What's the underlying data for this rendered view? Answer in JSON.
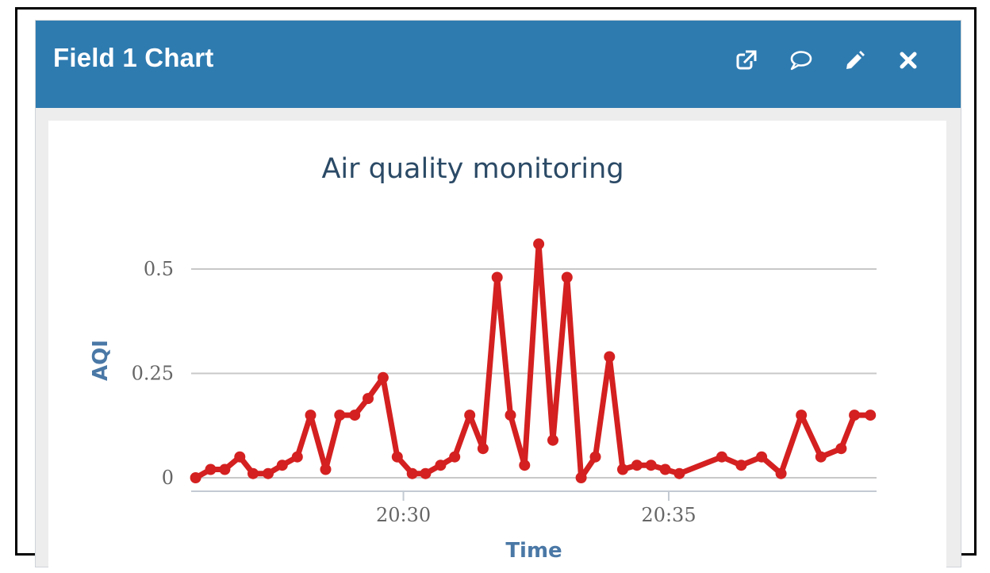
{
  "widget": {
    "title": "Field 1 Chart",
    "icons": [
      "external-link-icon",
      "comment-icon",
      "pencil-icon",
      "close-icon"
    ]
  },
  "colors": {
    "header_bg": "#2e7bb0",
    "series": "#d42020",
    "grid": "#c8c8c8",
    "title": "#2b4a66",
    "axis_title": "#4a78a6"
  },
  "chart_data": {
    "type": "line",
    "title": "Air quality monitoring",
    "xlabel": "Time",
    "ylabel": "AQI",
    "xlim": [
      "20:26:00",
      "20:38:55"
    ],
    "ylim": [
      0,
      0.5
    ],
    "y_ticks": [
      0,
      0.25,
      0.5
    ],
    "y_tick_labels": [
      "0",
      "0.25",
      "0.5"
    ],
    "x_ticks": [
      "20:30",
      "20:35"
    ],
    "grid": true,
    "legend": "none",
    "series": [
      {
        "x": [
          "20:26:05",
          "20:26:22",
          "20:26:38",
          "20:26:55",
          "20:27:10",
          "20:27:27",
          "20:27:43",
          "20:28:00",
          "20:28:15",
          "20:28:32",
          "20:28:48",
          "20:29:05",
          "20:29:20",
          "20:29:37",
          "20:29:53",
          "20:30:10",
          "20:30:25",
          "20:30:42",
          "20:30:58",
          "20:31:15",
          "20:31:30",
          "20:31:46",
          "20:32:01",
          "20:32:17",
          "20:32:33",
          "20:32:49",
          "20:33:05",
          "20:33:21",
          "20:33:37",
          "20:33:53",
          "20:34:08",
          "20:34:24",
          "20:34:40",
          "20:34:56",
          "20:35:12",
          "20:36:00",
          "20:36:22",
          "20:36:45",
          "20:37:07",
          "20:37:30",
          "20:37:52",
          "20:38:15",
          "20:38:30",
          "20:38:48"
        ],
        "values": [
          0.0,
          0.02,
          0.02,
          0.05,
          0.01,
          0.01,
          0.03,
          0.05,
          0.15,
          0.02,
          0.15,
          0.15,
          0.19,
          0.24,
          0.05,
          0.01,
          0.01,
          0.03,
          0.05,
          0.15,
          0.07,
          0.48,
          0.15,
          0.03,
          0.56,
          0.09,
          0.48,
          0.0,
          0.05,
          0.29,
          0.02,
          0.03,
          0.03,
          0.02,
          0.01,
          0.05,
          0.03,
          0.05,
          0.01,
          0.15,
          0.05,
          0.07,
          0.15,
          0.15
        ]
      }
    ]
  }
}
